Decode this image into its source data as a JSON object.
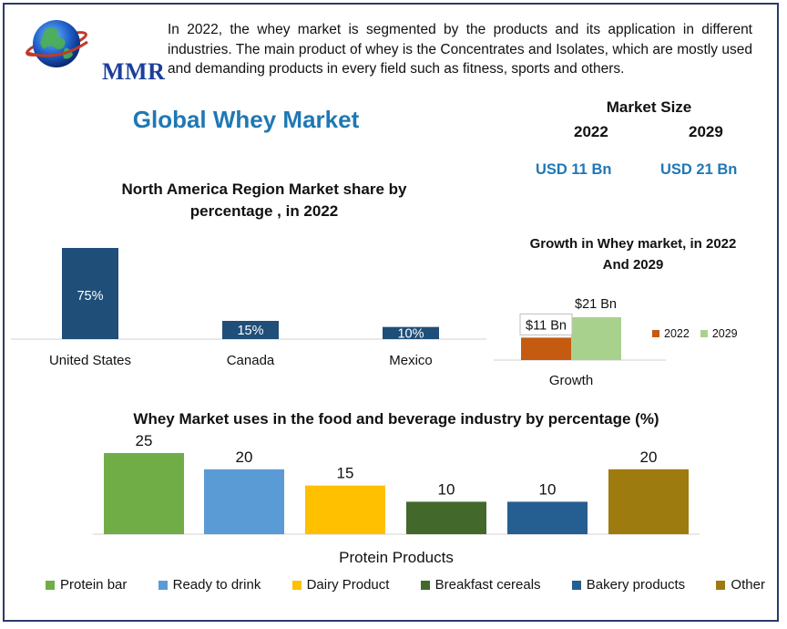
{
  "brand": {
    "name": "MMR"
  },
  "intro_text": "In 2022, the whey market is segmented by the products and its application in different industries. The main product of whey is the Concentrates and Isolates, which are mostly used and demanding products in every field such as fitness, sports and others.",
  "main_title": "Global Whey Market",
  "market_size": {
    "title": "Market Size",
    "years": [
      "2022",
      "2029"
    ],
    "values": [
      "USD 11 Bn",
      "USD 21 Bn"
    ]
  },
  "colors": {
    "title_blue": "#1f78b4",
    "bar_navy": "#1f4e79",
    "growth_2022": "#c55a11",
    "growth_2029": "#a9d18e",
    "frame": "#2a3b6e"
  },
  "chart_data": [
    {
      "type": "bar",
      "title": "North America Region Market share by percentage , in 2022",
      "categories": [
        "United States",
        "Canada",
        "Mexico"
      ],
      "values": [
        75,
        15,
        10
      ],
      "data_labels": [
        "75%",
        "15%",
        "10%"
      ],
      "ylim": [
        0,
        80
      ],
      "grid": false,
      "legend": "none"
    },
    {
      "type": "bar",
      "title": "Growth in Whey market, in 2022 And 2029",
      "categories": [
        "Growth"
      ],
      "series": [
        {
          "name": "2022",
          "values": [
            11
          ],
          "data_label": "$11 Bn",
          "color": "#c55a11"
        },
        {
          "name": "2029",
          "values": [
            21
          ],
          "data_label": "$21 Bn",
          "color": "#a9d18e"
        }
      ],
      "ylim": [
        0,
        24
      ],
      "legend": "right"
    },
    {
      "type": "bar",
      "title": "Whey Market uses in the food and beverage industry by percentage (%)",
      "xlabel": "Protein Products",
      "categories": [
        "Protein bar",
        "Ready to drink",
        "Dairy Product",
        "Breakfast cereals",
        "Bakery products",
        "Other"
      ],
      "values": [
        25,
        20,
        15,
        10,
        10,
        20
      ],
      "data_labels": [
        "25",
        "20",
        "15",
        "10",
        "10",
        "20"
      ],
      "colors": [
        "#70ad47",
        "#5b9bd5",
        "#ffc000",
        "#43682b",
        "#255e91",
        "#9e7b0e"
      ],
      "ylim": [
        0,
        25
      ],
      "legend": "bottom"
    }
  ]
}
